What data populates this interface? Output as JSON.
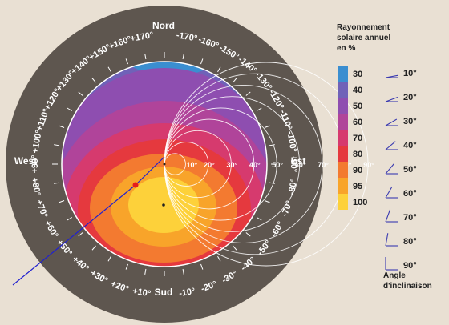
{
  "chart_data": {
    "type": "heatmap",
    "compass": {
      "north": "Nord",
      "south": "Sud",
      "east": "Est",
      "west": "West"
    },
    "azimuth_labels": [
      "+10°",
      "+20°",
      "+30°",
      "+40°",
      "+50°",
      "+60°",
      "+70°",
      "+80°",
      "+90°",
      "+100°",
      "+110°",
      "+120°",
      "+130°",
      "+140°",
      "+150°",
      "+160°",
      "+170°",
      "-10°",
      "-20°",
      "-30°",
      "-40°",
      "-50°",
      "-60°",
      "-70°",
      "-80°",
      "-90°",
      "-100°",
      "-110°",
      "-120°",
      "-130°",
      "-140°",
      "-150°",
      "-160°",
      "-170°"
    ],
    "tilt_ring_labels": [
      "10°",
      "20°",
      "30°",
      "40°",
      "50°",
      "60°",
      "70°",
      "80°",
      "90°"
    ],
    "legend": {
      "title_lines": [
        "Rayonnement",
        "solaire annuel",
        "en %"
      ],
      "levels": [
        {
          "value": "30",
          "color": "#3a8ed0"
        },
        {
          "value": "40",
          "color": "#6f62b8"
        },
        {
          "value": "50",
          "color": "#8e4eb0"
        },
        {
          "value": "60",
          "color": "#b0449a"
        },
        {
          "value": "70",
          "color": "#d63a6e"
        },
        {
          "value": "80",
          "color": "#e5393e"
        },
        {
          "value": "90",
          "color": "#f37a30"
        },
        {
          "value": "95",
          "color": "#f8a42a"
        },
        {
          "value": "100",
          "color": "#fdd13a"
        }
      ]
    },
    "inclination": {
      "title_lines": [
        "Angle",
        "d'inclinaison"
      ],
      "angles": [
        "10°",
        "20°",
        "30°",
        "40°",
        "50°",
        "60°",
        "70°",
        "80°",
        "90°"
      ]
    },
    "example_point": {
      "azimuth_deg": 50,
      "tilt_deg": 40
    },
    "optimum_point": {
      "azimuth_deg": 0,
      "tilt_deg": 35
    }
  }
}
